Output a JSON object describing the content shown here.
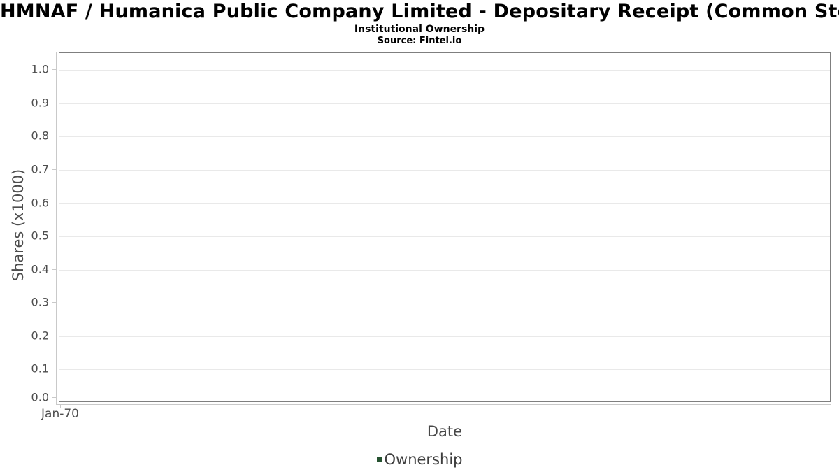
{
  "header": {
    "title": "HMNAF / Humanica Public Company Limited - Depositary Receipt (Common Stock)",
    "subtitle": "Institutional Ownership",
    "source": "Source: Fintel.io"
  },
  "chart_data": {
    "type": "line",
    "title": "HMNAF / Humanica Public Company Limited - Depositary Receipt (Common Stock)",
    "subtitle": "Institutional Ownership",
    "source": "Source: Fintel.io",
    "xlabel": "Date",
    "ylabel": "Shares (x1000)",
    "x_ticks": [
      "Jan-70"
    ],
    "y_ticks": [
      "0.0",
      "0.1",
      "0.2",
      "0.3",
      "0.4",
      "0.5",
      "0.6",
      "0.7",
      "0.8",
      "0.9",
      "1.0"
    ],
    "ylim": [
      0,
      1.051
    ],
    "grid": "horizontal",
    "legend_position": "bottom",
    "series": [
      {
        "name": "Ownership",
        "color": "#265230",
        "x": [],
        "values": []
      }
    ],
    "colors": {
      "title_text": "#000000",
      "axis_text": "#4d4d4d",
      "gridline": "#e9e9e9",
      "axis_line": "#c9c9c9",
      "plot_border": "#7f7f7f",
      "legend_swatch": "#265230"
    }
  }
}
